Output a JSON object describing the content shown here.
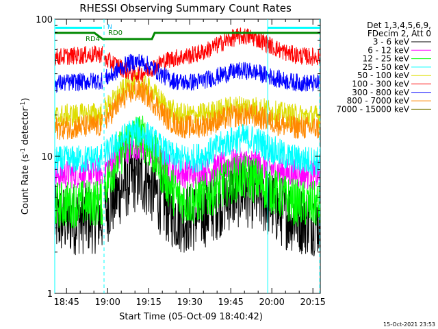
{
  "chart_data": {
    "type": "line",
    "title": "RHESSI Observing Summary Count Rates",
    "ylabel_parts": [
      "Count Rate (s",
      "-1",
      " detector",
      "-1",
      ")"
    ],
    "xlabel": "Start Time (05-Oct-09 18:40:42)",
    "yscale": "log",
    "ylim": [
      1,
      100
    ],
    "y_ticks": [
      "1",
      "10",
      "100"
    ],
    "xlim_minutes": [
      0,
      97
    ],
    "x_ticks": [
      {
        "label": "18:45",
        "min": 4.3
      },
      {
        "label": "19:00",
        "min": 19.3
      },
      {
        "label": "19:15",
        "min": 34.3
      },
      {
        "label": "19:30",
        "min": 49.3
      },
      {
        "label": "19:45",
        "min": 64.3
      },
      {
        "label": "20:00",
        "min": 79.3
      },
      {
        "label": "20:15",
        "min": 94.3
      }
    ],
    "legend_header": [
      "Det 1,3,4,5,6,9,",
      "FDecim 2, Att 0"
    ],
    "series": [
      {
        "name": "3 - 6 keV",
        "color": "#000000",
        "base": 3.4,
        "day1": 7.0,
        "day2": 5.5,
        "noise": 0.12
      },
      {
        "name": "6 - 12 keV",
        "color": "#ff00ff",
        "base": 7.3,
        "day1": 12.0,
        "day2": 9.0,
        "noise": 0.05
      },
      {
        "name": "12 - 25 keV",
        "color": "#00ff00",
        "base": 4.4,
        "day1": 14.0,
        "day2": 7.0,
        "noise": 0.08
      },
      {
        "name": "25 - 50 keV",
        "color": "#00ffff",
        "base": 9.2,
        "day1": 15.0,
        "day2": 13.5,
        "noise": 0.05
      },
      {
        "name": "50 - 100 keV",
        "color": "#dddd00",
        "base": 19.5,
        "day1": 34.0,
        "day2": 23.0,
        "noise": 0.04
      },
      {
        "name": "100 - 300 keV",
        "color": "#ff0000",
        "base": 53.0,
        "day1": 40.0,
        "day2": 75.0,
        "noise": 0.03
      },
      {
        "name": "300 - 800 keV",
        "color": "#0000ff",
        "base": 34.0,
        "day1": 49.0,
        "day2": 42.0,
        "noise": 0.03
      },
      {
        "name": "800 - 7000 keV",
        "color": "#ff8800",
        "base": 16.0,
        "day1": 30.0,
        "day2": 20.0,
        "noise": 0.04
      },
      {
        "name": "7000 - 15000 keV",
        "color": "#777700",
        "base": 0.0,
        "day1": 0.0,
        "day2": 0.0,
        "noise": 0.0
      }
    ],
    "annotations": {
      "rd4": "RD4",
      "rd0": "RD0",
      "n": "N",
      "date_stamp": "15-Oct-2021 23:53"
    },
    "night_bars": [
      [
        0,
        17.5
      ],
      [
        77.5,
        97
      ]
    ],
    "decimation_bar": [
      [
        0,
        97
      ]
    ],
    "vlines_min": [
      0,
      18.0,
      77.8,
      96.8
    ]
  }
}
